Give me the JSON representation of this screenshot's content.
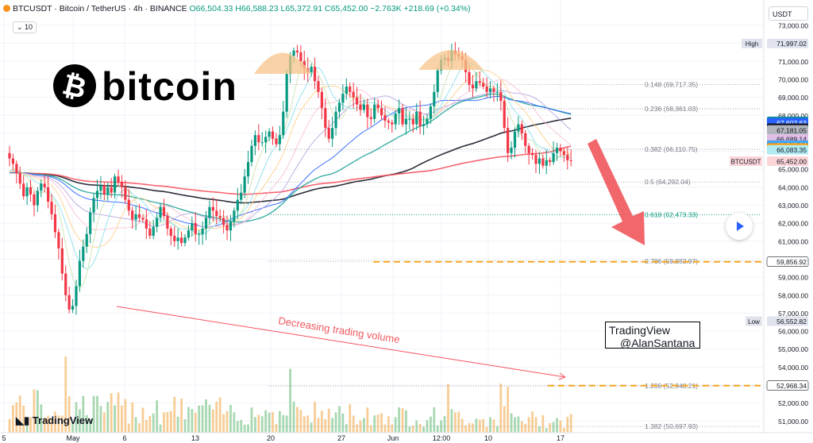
{
  "header": {
    "symbol": "BTCUSDT · Bitcoin / TetherUS · 4h · BINANCE",
    "ohlc": "O66,504.33 H66,588.23 L65,372.91 C65,452.00",
    "change": "−2.763K +218.69 (+0.34%)",
    "volume_badge": "10",
    "currency": "USDT"
  },
  "logo": {
    "text": "bitcoin",
    "symbol": "B"
  },
  "watermark": {
    "line1": "TradingView",
    "line2": "@AlanSantana"
  },
  "brand": "TradingView",
  "colors": {
    "up": "#089981",
    "down": "#f23645",
    "fib": "#787b86",
    "orange": "#f5a623",
    "arrow": "#f05a60"
  },
  "chart_data": {
    "type": "candlestick",
    "ylim": [
      50000,
      74000
    ],
    "price_ticks": [
      51000,
      52000,
      53000,
      54000,
      55000,
      56000,
      57000,
      58000,
      59000,
      60000,
      61000,
      62000,
      63000,
      64000,
      65000,
      66000,
      67000,
      68000,
      69000,
      70000,
      71000,
      72000,
      73000
    ],
    "price_tick_labels": [
      "51,000.00",
      "52,000.00",
      "53,000.00",
      "54,000.00",
      "55,000.00",
      "56,000.00",
      "57,000.00",
      "58,000.00",
      "59,000.00",
      "60,000.00",
      "61,000.00",
      "62,000.00",
      "63,000.00",
      "64,000.00",
      "65,000.00",
      "66,000.00",
      "67,000.00",
      "68,000.00",
      "69,000.00",
      "70,000.00",
      "71,000.00",
      "72,000.00",
      "73,000.00"
    ],
    "x_tick_labels": [
      "5",
      "May",
      "6",
      "13",
      "20",
      "27",
      "Jun",
      "12:00",
      "10",
      "17"
    ],
    "fib_levels": [
      {
        "label": "0.148 (69,717.35)",
        "price": 69717.35
      },
      {
        "label": "0.236 (68,361.03)",
        "price": 68361.03
      },
      {
        "label": "0.382 (66,110.75)",
        "price": 66110.75
      },
      {
        "label": "0.5 (64,292.04)",
        "price": 64292.04
      },
      {
        "label": "0.618 (62,473.33)",
        "price": 62473.33
      },
      {
        "label": "0.786 (59,883.97)",
        "price": 59883.97
      },
      {
        "label": "1.236 (52,948.21)",
        "price": 52948.21
      },
      {
        "label": "1.382 (50,697.93)",
        "price": 50697.93
      }
    ],
    "price_badges": [
      {
        "text": "High",
        "value": "71,997.02",
        "price": 71997.02,
        "bg": "#e0e3eb",
        "fg": "#131722"
      },
      {
        "text": "",
        "value": "67,661.73",
        "price": 67661.73,
        "bg": "#089981",
        "fg": "#ffffff"
      },
      {
        "text": "",
        "value": "67,602.63",
        "price": 67602.63,
        "bg": "#2962ff",
        "fg": "#ffffff"
      },
      {
        "text": "",
        "value": "67,282.18",
        "price": 67282.18,
        "bg": "#131722",
        "fg": "#ffffff"
      },
      {
        "text": "",
        "value": "67,181.05",
        "price": 67181.05,
        "bg": "#b2b5be",
        "fg": "#131722"
      },
      {
        "text": "",
        "value": "66,689.14",
        "price": 66689.14,
        "bg": "#e1bee7",
        "fg": "#131722"
      },
      {
        "text": "",
        "value": "66,349.16",
        "price": 66349.16,
        "bg": "#f8b2b9",
        "fg": "#131722"
      },
      {
        "text": "",
        "value": "66,346.14",
        "price": 66346.14,
        "bg": "#42a5f5",
        "fg": "#ffffff"
      },
      {
        "text": "",
        "value": "66,176.45",
        "price": 66176.45,
        "bg": "#ff9800",
        "fg": "#131722"
      },
      {
        "text": "",
        "value": "66,083.35",
        "price": 66083.35,
        "bg": "#b2ebf2",
        "fg": "#131722"
      },
      {
        "text": "BTCUSDT",
        "value": "65,452.00",
        "price": 65452.0,
        "bg": "#fbd5d8",
        "fg": "#131722"
      },
      {
        "text": "",
        "value": "59,856.92",
        "price": 59856.92,
        "bg": "#ffffff",
        "fg": "#131722"
      },
      {
        "text": "Low",
        "value": "56,552.82",
        "price": 56552.82,
        "bg": "#e0e3eb",
        "fg": "#131722"
      },
      {
        "text": "",
        "value": "52,968.34",
        "price": 52968.34,
        "bg": "#ffffff",
        "fg": "#131722"
      }
    ],
    "annotation": "Decreasing trading volume",
    "closes": [
      65600,
      65300,
      64800,
      64200,
      63500,
      64000,
      63600,
      63000,
      63800,
      64200,
      64000,
      63200,
      62500,
      61500,
      60600,
      59200,
      58000,
      57200,
      57400,
      58500,
      59900,
      60700,
      61400,
      62600,
      63400,
      63800,
      64100,
      63600,
      64000,
      63700,
      64600,
      64300,
      64000,
      63300,
      62700,
      62200,
      62500,
      62300,
      62200,
      61700,
      61300,
      61800,
      62300,
      62900,
      62400,
      61700,
      61300,
      61000,
      61200,
      60900,
      61200,
      61600,
      62000,
      61400,
      61400,
      61700,
      62300,
      62900,
      62700,
      62400,
      62300,
      61900,
      61600,
      62100,
      62700,
      63300,
      63700,
      64600,
      65400,
      66300,
      66900,
      66500,
      66500,
      66800,
      67100,
      66700,
      66400,
      66900,
      68200,
      70300,
      71300,
      71600,
      71500,
      71000,
      70600,
      70400,
      70700,
      69900,
      69300,
      68400,
      67300,
      66700,
      67300,
      68200,
      68700,
      69200,
      69600,
      69300,
      69000,
      68600,
      68300,
      68600,
      67900,
      67800,
      68600,
      68400,
      68000,
      67700,
      67600,
      67500,
      68100,
      68400,
      67500,
      67800,
      67800,
      67500,
      68200,
      67400,
      67500,
      67800,
      68500,
      69300,
      70500,
      71100,
      71200,
      71000,
      71600,
      71400,
      71300,
      71100,
      70400,
      69700,
      69500,
      69900,
      69800,
      69600,
      69300,
      69500,
      69300,
      69300,
      68800,
      67300,
      65900,
      66200,
      67100,
      67500,
      67000,
      66300,
      65900,
      65800,
      65300,
      65600,
      65200,
      65500,
      65400,
      65900,
      66200,
      66000,
      65800,
      65500,
      65452
    ]
  }
}
